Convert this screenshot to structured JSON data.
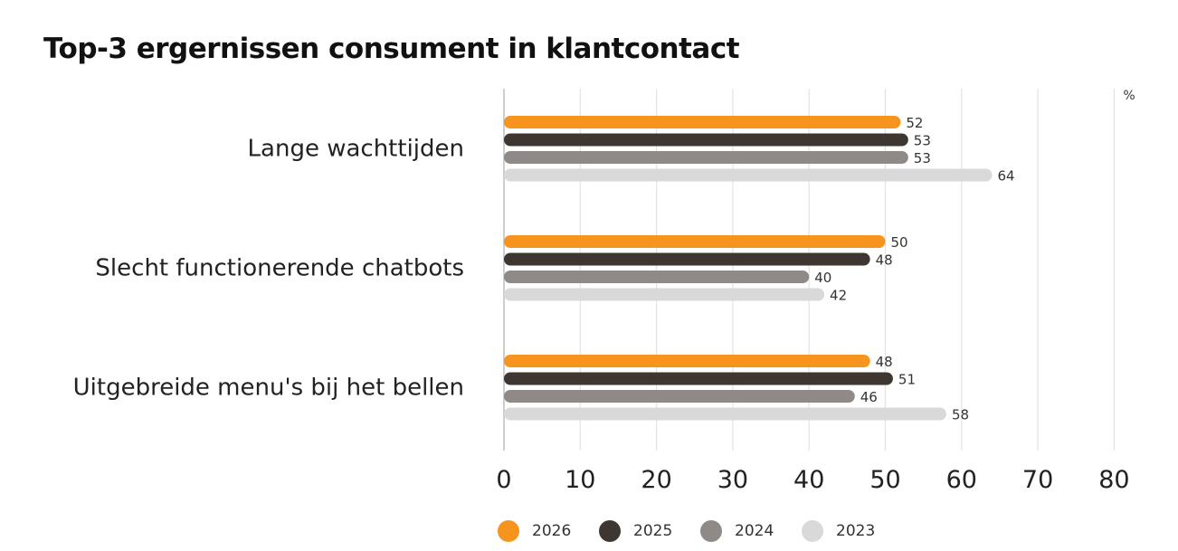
{
  "chart_data": {
    "type": "bar",
    "orientation": "horizontal",
    "title": "Top-3 ergernissen consument in klantcontact",
    "unit_label": "%",
    "categories": [
      "Lange wachttijden",
      "Slecht functionerende chatbots",
      "Uitgebreide menu's bij het bellen"
    ],
    "series": [
      {
        "name": "2026",
        "color": "#f7941d",
        "values": [
          52,
          50,
          48
        ]
      },
      {
        "name": "2025",
        "color": "#3e3631",
        "values": [
          53,
          48,
          51
        ]
      },
      {
        "name": "2024",
        "color": "#8f8a87",
        "values": [
          53,
          40,
          46
        ]
      },
      {
        "name": "2023",
        "color": "#d9d9d9",
        "values": [
          64,
          42,
          58
        ]
      }
    ],
    "xlim": [
      0,
      80
    ],
    "xticks": [
      0,
      10,
      20,
      30,
      40,
      50,
      60,
      70,
      80
    ],
    "grid": true,
    "legend_position": "bottom",
    "data_labels": true
  }
}
